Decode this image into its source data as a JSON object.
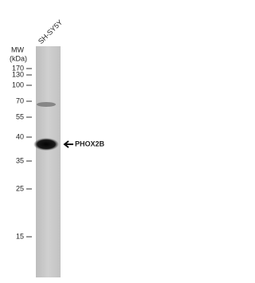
{
  "lane_label": "SH-SY5Y",
  "mw_label": "MW",
  "unit_label": "(kDa)",
  "markers": [
    "170",
    "130",
    "100",
    "70",
    "55",
    "40",
    "35",
    "25",
    "15"
  ],
  "target_label": "PHOX2B"
}
